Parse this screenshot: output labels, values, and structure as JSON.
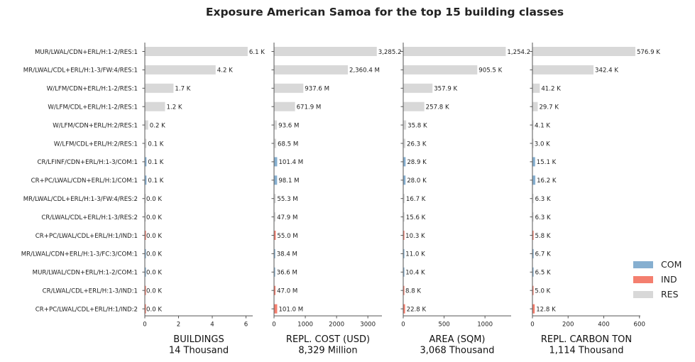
{
  "chart_data": {
    "type": "bar",
    "orientation": "horizontal",
    "title": "Exposure American Samoa for the top 15 building classes",
    "categories": [
      "MUR/LWAL/CDN+ERL/H:1-2/RES:1",
      "MR/LWAL/CDL+ERL/H:1-3/FW:4/RES:1",
      "W/LFM/CDN+ERL/H:1-2/RES:1",
      "W/LFM/CDL+ERL/H:1-2/RES:1",
      "W/LFM/CDN+ERL/H:2/RES:1",
      "W/LFM/CDL+ERL/H:2/RES:1",
      "CR/LFINF/CDN+ERL/H:1-3/COM:1",
      "CR+PC/LWAL/CDN+ERL/H:1/COM:1",
      "MR/LWAL/CDL+ERL/H:1-3/FW:4/RES:2",
      "CR/LWAL/CDL+ERL/H:1-3/RES:2",
      "CR+PC/LWAL/CDL+ERL/H:1/IND:1",
      "MR/LWAL/CDN+ERL/H:1-3/FC:3/COM:1",
      "MUR/LWAL/CDN+ERL/H:1-2/COM:1",
      "CR/LWAL/CDL+ERL/H:1-3/IND:1",
      "CR+PC/LWAL/CDL+ERL/H:1/IND:2"
    ],
    "occupancy": [
      "RES",
      "RES",
      "RES",
      "RES",
      "RES",
      "RES",
      "COM",
      "COM",
      "RES",
      "RES",
      "IND",
      "COM",
      "COM",
      "IND",
      "IND"
    ],
    "colors": {
      "COM": "#86afd0",
      "IND": "#f47f6f",
      "RES": "#d8d8d8"
    },
    "legend": {
      "placement": "right",
      "entries": [
        "COM",
        "IND",
        "RES"
      ]
    },
    "panels": [
      {
        "xlabel": "BUILDINGS",
        "total": "14 Thousand",
        "xlim": [
          0,
          6.4
        ],
        "ticks": [
          0,
          2,
          4,
          6
        ],
        "tick_labels": [
          "0",
          "2",
          "4",
          "6"
        ],
        "values": [
          6.1,
          4.2,
          1.7,
          1.2,
          0.2,
          0.1,
          0.1,
          0.1,
          0.0,
          0.0,
          0.0,
          0.0,
          0.0,
          0.0,
          0.0
        ],
        "labels": [
          "6.1 K",
          "4.2 K",
          "1.7 K",
          "1.2 K",
          "0.2 K",
          "0.1 K",
          "0.1 K",
          "0.1 K",
          "0.0 K",
          "0.0 K",
          "0.0 K",
          "0.0 K",
          "0.0 K",
          "0.0 K",
          "0.0 K"
        ]
      },
      {
        "xlabel": "REPL. COST (USD)",
        "total": "8,329 Million",
        "xlim": [
          0,
          3450
        ],
        "ticks": [
          0,
          1000,
          2000,
          3000
        ],
        "tick_labels": [
          "0",
          "1000",
          "2000",
          "3000"
        ],
        "values": [
          3285.2,
          2360.4,
          937.6,
          671.9,
          93.6,
          68.5,
          101.4,
          98.1,
          55.3,
          47.9,
          55.0,
          38.4,
          36.6,
          47.0,
          101.0
        ],
        "labels": [
          "3,285.2",
          "2,360.4 M",
          "937.6 M",
          "671.9 M",
          "93.6 M",
          "68.5 M",
          "101.4 M",
          "98.1 M",
          "55.3 M",
          "47.9 M",
          "55.0 M",
          "38.4 M",
          "36.6 M",
          "47.0 M",
          "101.0 M"
        ]
      },
      {
        "xlabel": "AREA (SQM)",
        "total": "3,068 Thousand",
        "xlim": [
          0,
          1320
        ],
        "ticks": [
          0,
          500,
          1000
        ],
        "tick_labels": [
          "0",
          "500",
          "1000"
        ],
        "values": [
          1254.2,
          905.5,
          357.9,
          257.8,
          35.8,
          26.3,
          28.9,
          28.0,
          16.7,
          15.6,
          10.3,
          11.0,
          10.4,
          8.8,
          22.8
        ],
        "labels": [
          "1,254.2",
          "905.5 K",
          "357.9 K",
          "257.8 K",
          "35.8 K",
          "26.3 K",
          "28.9 K",
          "28.0 K",
          "16.7 K",
          "15.6 K",
          "10.3 K",
          "11.0 K",
          "10.4 K",
          "8.8 K",
          "22.8 K"
        ]
      },
      {
        "xlabel": "REPL. CARBON TON",
        "total": "1,114 Thousand",
        "xlim": [
          0,
          605
        ],
        "ticks": [
          0,
          200,
          400,
          600
        ],
        "tick_labels": [
          "0",
          "200",
          "400",
          "600"
        ],
        "values": [
          576.9,
          342.4,
          41.2,
          29.7,
          4.1,
          3.0,
          15.1,
          16.2,
          6.3,
          6.3,
          5.8,
          6.7,
          6.5,
          5.0,
          12.8
        ],
        "labels": [
          "576.9 K",
          "342.4 K",
          "41.2 K",
          "29.7 K",
          "4.1 K",
          "3.0 K",
          "15.1 K",
          "16.2 K",
          "6.3 K",
          "6.3 K",
          "5.8 K",
          "6.7 K",
          "6.5 K",
          "5.0 K",
          "12.8 K"
        ]
      }
    ]
  }
}
